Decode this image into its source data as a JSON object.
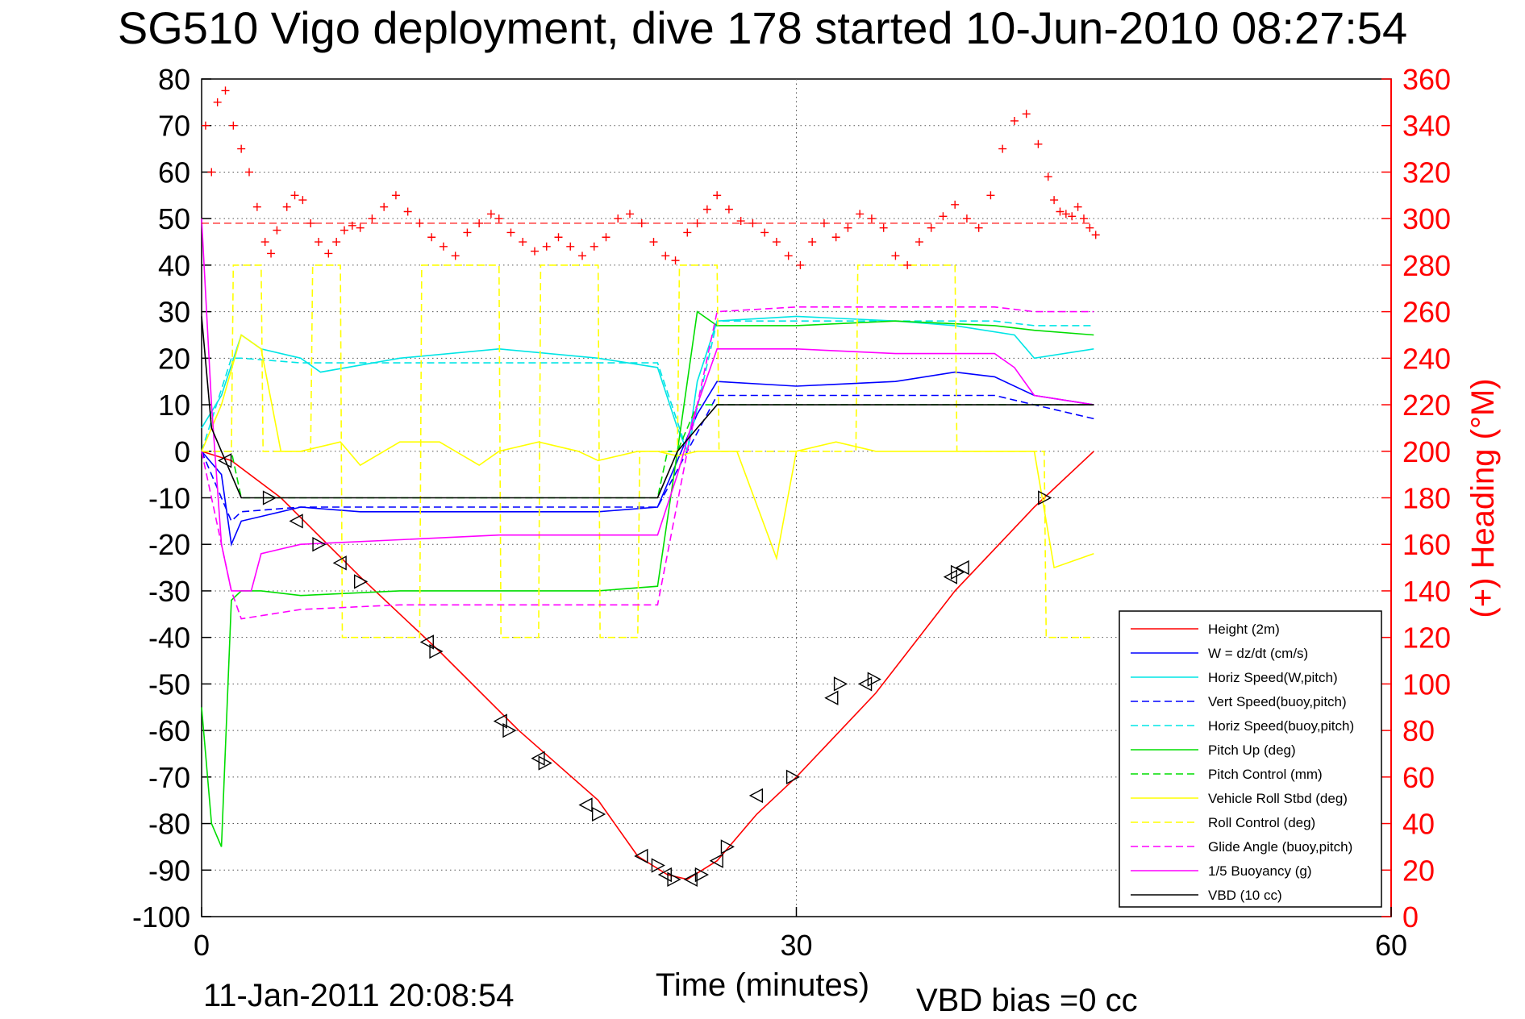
{
  "title": "SG510 Vigo deployment, dive 178 started 10-Jun-2010 08:27:54",
  "footer": {
    "timestamp": "11-Jan-2011 20:08:54",
    "vbd_bias": "VBD bias =0 cc"
  },
  "chart_data": {
    "type": "line",
    "xlabel": "Time (minutes)",
    "ylabel": "",
    "y2label": "(+) Heading (°M)",
    "xlim": [
      0,
      60
    ],
    "ylim": [
      -100,
      80
    ],
    "y2lim": [
      0,
      360
    ],
    "xticks": [
      0,
      30,
      60
    ],
    "yticks": [
      80,
      70,
      60,
      50,
      40,
      30,
      20,
      10,
      0,
      -10,
      -20,
      -30,
      -40,
      -50,
      -60,
      -70,
      -80,
      -90,
      -100
    ],
    "y2ticks": [
      360,
      340,
      320,
      300,
      280,
      260,
      240,
      220,
      200,
      180,
      160,
      140,
      120,
      100,
      80,
      60,
      40,
      20,
      0
    ],
    "grid": true,
    "legend_position": "bottom-right",
    "colors": {
      "red": "#ff0000",
      "blue": "#0000ff",
      "cyan": "#00e5e5",
      "green": "#00dd00",
      "yellow": "#ffff00",
      "magenta": "#ff00ff",
      "black": "#000000"
    },
    "series": [
      {
        "name": "Height (2m)",
        "color": "#ff0000",
        "dash": "solid",
        "x": [
          0,
          1.5,
          4,
          8,
          12,
          16,
          20,
          22,
          23.5,
          24.5,
          26,
          28,
          30,
          34,
          38,
          42,
          45
        ],
        "y": [
          0,
          -2,
          -10,
          -27,
          -43,
          -60,
          -75,
          -87,
          -91,
          -92,
          -88,
          -78,
          -70,
          -52,
          -30,
          -12,
          0
        ]
      },
      {
        "name": "W = dz/dt (cm/s)",
        "color": "#0000ff",
        "dash": "solid",
        "x": [
          0,
          1,
          1.5,
          2,
          3,
          5,
          8,
          12,
          16,
          20,
          23,
          24,
          25,
          26,
          30,
          35,
          38,
          40,
          42,
          45
        ],
        "y": [
          0,
          -5,
          -20,
          -15,
          -14,
          -12,
          -13,
          -13,
          -13,
          -13,
          -12,
          -2,
          8,
          15,
          14,
          15,
          17,
          16,
          12,
          10
        ]
      },
      {
        "name": "Horiz Speed(W,pitch)",
        "color": "#00e5e5",
        "dash": "solid",
        "x": [
          0,
          1,
          2,
          3,
          5,
          6,
          10,
          15,
          20,
          23,
          24,
          24.5,
          25,
          26,
          30,
          35,
          38,
          41,
          42,
          45
        ],
        "y": [
          5,
          12,
          25,
          22,
          20,
          17,
          20,
          22,
          20,
          18,
          5,
          0,
          15,
          28,
          29,
          28,
          27,
          25,
          20,
          22
        ]
      },
      {
        "name": "Vert Speed(buoy,pitch)",
        "color": "#0000ff",
        "dash": "dashed",
        "x": [
          0,
          1.5,
          2,
          5,
          10,
          15,
          20,
          23,
          24.5,
          26,
          30,
          35,
          40,
          42,
          45
        ],
        "y": [
          0,
          -15,
          -13,
          -12,
          -12,
          -12,
          -12,
          -12,
          0,
          12,
          12,
          12,
          12,
          10,
          7
        ]
      },
      {
        "name": "Horiz Speed(buoy,pitch)",
        "color": "#00e5e5",
        "dash": "dashed",
        "x": [
          0,
          1.5,
          2,
          5,
          10,
          15,
          20,
          23,
          24.5,
          26,
          30,
          35,
          40,
          42,
          45
        ],
        "y": [
          0,
          20,
          20,
          19,
          19,
          19,
          19,
          19,
          0,
          28,
          28,
          28,
          28,
          27,
          27
        ]
      },
      {
        "name": "Pitch Up (deg)",
        "color": "#00dd00",
        "dash": "solid",
        "x": [
          0,
          0.5,
          1,
          1.5,
          2,
          3,
          5,
          10,
          15,
          20,
          23,
          24,
          25,
          26,
          30,
          35,
          40,
          42,
          45
        ],
        "y": [
          -55,
          -80,
          -85,
          -32,
          -30,
          -30,
          -31,
          -30,
          -30,
          -30,
          -29,
          0,
          30,
          27,
          27,
          28,
          27,
          26,
          25
        ]
      },
      {
        "name": "Pitch Control (mm)",
        "color": "#00dd00",
        "dash": "dashed",
        "x": [
          0,
          1.5,
          2,
          10,
          20,
          23,
          23.5,
          24,
          25,
          30,
          40,
          45
        ],
        "y": [
          0,
          0,
          -10,
          -10,
          -10,
          -10,
          0,
          0,
          10,
          10,
          10,
          10
        ]
      },
      {
        "name": "Vehicle Roll Stbd (deg)",
        "color": "#ffff00",
        "dash": "solid",
        "x": [
          0,
          1,
          2,
          3,
          4,
          5,
          7,
          8,
          10,
          12,
          14,
          15,
          17,
          19,
          20,
          22,
          23,
          24,
          25,
          27,
          29,
          30,
          32,
          34,
          35,
          36,
          38,
          40,
          42,
          43,
          45
        ],
        "y": [
          0,
          10,
          25,
          22,
          0,
          0,
          2,
          -3,
          2,
          2,
          -3,
          0,
          2,
          0,
          -2,
          0,
          0,
          -1,
          0,
          0,
          -23,
          0,
          2,
          0,
          0,
          0,
          0,
          0,
          0,
          -25,
          -22
        ]
      },
      {
        "name": "Roll Control (deg)",
        "color": "#ffff00",
        "dash": "dashed",
        "x": [
          0,
          1.5,
          1.6,
          3,
          3.1,
          5.5,
          5.6,
          7,
          7.1,
          11,
          11.1,
          15,
          15.1,
          17,
          17.1,
          20,
          20.1,
          22,
          22.1,
          24,
          24.1,
          26,
          26.1,
          33,
          33.1,
          38,
          38.1,
          42.5,
          42.6,
          45
        ],
        "y": [
          0,
          0,
          40,
          40,
          0,
          0,
          40,
          40,
          -40,
          -40,
          40,
          40,
          -40,
          -40,
          40,
          40,
          -40,
          -40,
          0,
          0,
          40,
          40,
          0,
          0,
          40,
          40,
          0,
          0,
          -40,
          -40
        ]
      },
      {
        "name": "Glide Angle (buoy,pitch)",
        "color": "#ff00ff",
        "dash": "dashed",
        "x": [
          0,
          1.5,
          2,
          5,
          10,
          15,
          20,
          23,
          24.5,
          26,
          30,
          35,
          40,
          42,
          45
        ],
        "y": [
          0,
          -30,
          -36,
          -34,
          -33,
          -33,
          -33,
          -33,
          0,
          30,
          31,
          31,
          31,
          30,
          30
        ]
      },
      {
        "name": "1/5 Buoyancy (g)",
        "color": "#ff00ff",
        "dash": "solid",
        "x": [
          0,
          0.5,
          1,
          1.5,
          2,
          2.5,
          3,
          4,
          5,
          10,
          15,
          20,
          23,
          24,
          25,
          26,
          30,
          35,
          40,
          41,
          42,
          45
        ],
        "y": [
          50,
          10,
          -20,
          -30,
          -30,
          -30,
          -22,
          -21,
          -20,
          -19,
          -18,
          -18,
          -18,
          -5,
          10,
          22,
          22,
          21,
          21,
          18,
          12,
          10
        ]
      },
      {
        "name": "VBD (10 cc)",
        "color": "#000000",
        "dash": "solid",
        "x": [
          0,
          0.5,
          1,
          1.5,
          2,
          10,
          20,
          23,
          24,
          25,
          26,
          30,
          40,
          45
        ],
        "y": [
          29,
          5,
          0,
          -5,
          -10,
          -10,
          -10,
          -10,
          0,
          5,
          10,
          10,
          10,
          10
        ]
      }
    ],
    "heading_samples": {
      "name": "Heading",
      "axis": "right",
      "color": "#ff0000",
      "marker": "+",
      "x": [
        0.2,
        0.5,
        0.8,
        1.2,
        1.6,
        2.0,
        2.4,
        2.8,
        3.2,
        3.5,
        3.8,
        4.3,
        4.7,
        5.1,
        5.5,
        5.9,
        6.4,
        6.8,
        7.2,
        7.6,
        8.0,
        8.6,
        9.2,
        9.8,
        10.4,
        11.0,
        11.6,
        12.2,
        12.8,
        13.4,
        14.0,
        14.6,
        15.0,
        15.6,
        16.2,
        16.8,
        17.4,
        18.0,
        18.6,
        19.2,
        19.8,
        20.4,
        21.0,
        21.6,
        22.2,
        22.8,
        23.4,
        23.9,
        24.5,
        25.0,
        25.5,
        26.0,
        26.6,
        27.2,
        27.8,
        28.4,
        29.0,
        29.6,
        30.2,
        30.8,
        31.4,
        32.0,
        32.6,
        33.2,
        33.8,
        34.4,
        35.0,
        35.6,
        36.2,
        36.8,
        37.4,
        38.0,
        38.6,
        39.2,
        39.8,
        40.4,
        41.0,
        41.6,
        42.2,
        42.7,
        43.0,
        43.3,
        43.6,
        43.9,
        44.2,
        44.5,
        44.8,
        45.1
      ],
      "y": [
        340,
        320,
        350,
        355,
        340,
        330,
        320,
        305,
        290,
        285,
        295,
        305,
        310,
        308,
        298,
        290,
        285,
        290,
        295,
        297,
        296,
        300,
        305,
        310,
        303,
        298,
        292,
        288,
        284,
        294,
        298,
        302,
        300,
        294,
        290,
        286,
        288,
        292,
        288,
        284,
        288,
        292,
        300,
        302,
        298,
        290,
        284,
        282,
        294,
        298,
        304,
        310,
        304,
        299,
        298,
        294,
        290,
        284,
        280,
        290,
        298,
        292,
        296,
        302,
        300,
        296,
        284,
        280,
        290,
        296,
        301,
        306,
        300,
        296,
        310,
        330,
        342,
        345,
        332,
        318,
        308,
        303,
        302,
        301,
        305,
        300,
        296,
        293
      ]
    },
    "heading_mean": 298,
    "turn_markers": {
      "note": "triangle symbols along the Height track",
      "x": [
        1.2,
        3.4,
        4.8,
        5.9,
        7.0,
        8.0,
        11.4,
        11.8,
        15.1,
        15.5,
        17.0,
        17.3,
        19.4,
        20.0,
        22.2,
        23.0,
        23.4,
        23.8,
        24.7,
        25.2,
        26.0,
        26.5,
        28.0,
        29.8,
        31.8,
        32.2,
        33.5,
        33.9,
        37.8,
        38.1,
        38.4,
        42.5
      ],
      "y": [
        -2,
        -10,
        -15,
        -20,
        -24,
        -28,
        -41,
        -43,
        -58,
        -60,
        -66,
        -67,
        -76,
        -78,
        -87,
        -89,
        -91,
        -92,
        -92,
        -91,
        -88,
        -85,
        -74,
        -70,
        -53,
        -50,
        -50,
        -49,
        -27,
        -26,
        -25,
        -10
      ]
    }
  }
}
